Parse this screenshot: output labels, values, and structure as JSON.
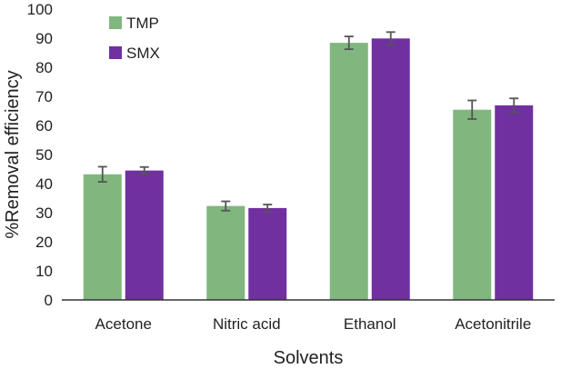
{
  "chart_data": {
    "type": "bar",
    "title": "",
    "xlabel": "Solvents",
    "ylabel": "%Removal efficiency",
    "categories": [
      "Acetone",
      "Nitric acid",
      "Ethanol",
      "Acetonitrile"
    ],
    "series": [
      {
        "name": "TMP",
        "color": "#7fb77e",
        "values": [
          43.2,
          32.3,
          88.4,
          65.4
        ],
        "errors": [
          2.6,
          1.6,
          2.2,
          3.2
        ]
      },
      {
        "name": "SMX",
        "color": "#7030a0",
        "values": [
          44.5,
          31.6,
          89.9,
          66.9
        ],
        "errors": [
          1.2,
          1.2,
          2.2,
          2.4
        ]
      }
    ],
    "ylim": [
      0,
      100
    ],
    "yticks": [
      0,
      10,
      20,
      30,
      40,
      50,
      60,
      70,
      80,
      90,
      100
    ],
    "grid": false,
    "legend_position": "top-left"
  }
}
